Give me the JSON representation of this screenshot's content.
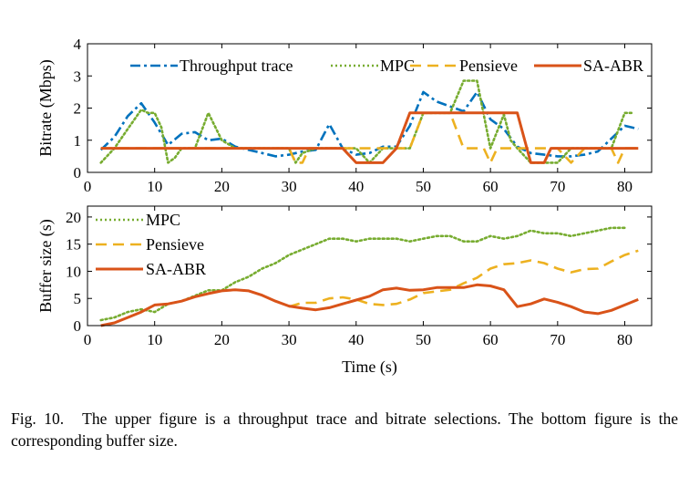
{
  "chart_data": [
    {
      "type": "line",
      "ylabel": "Bitrate (Mbps)",
      "xlim": [
        0,
        84
      ],
      "ylim": [
        0,
        4
      ],
      "xticks": [
        0,
        10,
        20,
        30,
        40,
        50,
        60,
        70,
        80
      ],
      "yticks": [
        0,
        1,
        2,
        3,
        4
      ],
      "grid": false,
      "legend_position": "top, horizontal",
      "series": [
        {
          "name": "Throughput trace",
          "style": "dashdot",
          "color": "#0072BD",
          "x": [
            2,
            4,
            6,
            8,
            10,
            12,
            14,
            16,
            18,
            20,
            22,
            24,
            26,
            28,
            30,
            32,
            34,
            36,
            38,
            40,
            42,
            44,
            46,
            48,
            50,
            52,
            54,
            56,
            58,
            60,
            62,
            64,
            66,
            68,
            70,
            72,
            74,
            76,
            78,
            80,
            82
          ],
          "y": [
            0.7,
            1.1,
            1.75,
            2.15,
            1.55,
            0.85,
            1.2,
            1.25,
            1.0,
            1.05,
            0.8,
            0.7,
            0.6,
            0.5,
            0.55,
            0.65,
            0.7,
            1.5,
            0.75,
            0.55,
            0.6,
            0.8,
            0.8,
            1.45,
            2.5,
            2.2,
            2.05,
            1.9,
            2.5,
            1.65,
            1.35,
            0.8,
            0.6,
            0.55,
            0.5,
            0.5,
            0.55,
            0.65,
            1.05,
            1.45,
            1.35
          ]
        },
        {
          "name": "MPC",
          "style": "dotted",
          "color": "#77AC30",
          "x": [
            2,
            4,
            6,
            8,
            9,
            10,
            11,
            12,
            13,
            14,
            16,
            18,
            20,
            22,
            24,
            28,
            30,
            31,
            32,
            34,
            36,
            40,
            42,
            44,
            46,
            48,
            50,
            52,
            54,
            56,
            57,
            58,
            60,
            62,
            63,
            64,
            66,
            68,
            70,
            72,
            74,
            76,
            78,
            80,
            81
          ],
          "y": [
            0.3,
            0.75,
            1.35,
            1.95,
            1.85,
            1.85,
            1.4,
            0.3,
            0.45,
            0.75,
            0.75,
            1.85,
            1.0,
            0.75,
            0.75,
            0.75,
            0.75,
            0.3,
            0.6,
            0.75,
            0.75,
            0.75,
            0.3,
            0.75,
            0.75,
            0.75,
            1.85,
            1.85,
            1.85,
            2.85,
            2.85,
            2.85,
            0.75,
            1.8,
            1.0,
            0.75,
            0.3,
            0.3,
            0.3,
            0.75,
            0.75,
            0.75,
            0.75,
            1.85,
            1.85
          ]
        },
        {
          "name": "Pensieve",
          "style": "dashed",
          "color": "#EDB120",
          "x": [
            2,
            30,
            31,
            32,
            33,
            36,
            46,
            48,
            50,
            51,
            52,
            54,
            56,
            58,
            59,
            60,
            61,
            62,
            63,
            64,
            66,
            68,
            70,
            72,
            74,
            76,
            78,
            79,
            80,
            82
          ],
          "y": [
            0.75,
            0.75,
            0.3,
            0.3,
            0.75,
            0.75,
            0.75,
            0.75,
            1.85,
            1.85,
            1.85,
            1.85,
            0.75,
            0.75,
            0.75,
            0.3,
            0.75,
            0.75,
            0.75,
            0.75,
            0.75,
            0.75,
            0.75,
            0.3,
            0.75,
            0.75,
            0.75,
            0.3,
            0.75,
            0.75
          ]
        },
        {
          "name": "SA-ABR",
          "style": "solid",
          "color": "#D95319",
          "x": [
            2,
            38,
            40,
            44,
            46,
            48,
            64,
            66,
            68,
            69,
            70,
            82
          ],
          "y": [
            0.75,
            0.75,
            0.3,
            0.3,
            0.75,
            1.85,
            1.85,
            0.3,
            0.3,
            0.75,
            0.75,
            0.75
          ]
        }
      ]
    },
    {
      "type": "line",
      "xlabel": "Time (s)",
      "ylabel": "Buffer size (s)",
      "xlim": [
        0,
        84
      ],
      "ylim": [
        0,
        22
      ],
      "xticks": [
        0,
        10,
        20,
        30,
        40,
        50,
        60,
        70,
        80
      ],
      "yticks": [
        0,
        5,
        10,
        15,
        20
      ],
      "grid": false,
      "legend_position": "top-left, vertical",
      "series": [
        {
          "name": "MPC",
          "style": "dotted",
          "color": "#77AC30",
          "x": [
            2,
            4,
            6,
            8,
            10,
            12,
            14,
            16,
            18,
            20,
            22,
            24,
            26,
            28,
            30,
            32,
            34,
            36,
            38,
            40,
            42,
            44,
            46,
            48,
            50,
            52,
            54,
            56,
            58,
            60,
            62,
            64,
            66,
            68,
            70,
            72,
            74,
            76,
            78,
            80
          ],
          "y": [
            1.0,
            1.5,
            2.5,
            3.0,
            2.5,
            4.0,
            4.5,
            5.5,
            6.5,
            6.5,
            8.0,
            9.0,
            10.5,
            11.5,
            13.0,
            14.0,
            15.0,
            16.0,
            16.0,
            15.5,
            16.0,
            16.0,
            16.0,
            15.5,
            16.0,
            16.5,
            16.5,
            15.5,
            15.5,
            16.5,
            16.0,
            16.5,
            17.5,
            17.0,
            17.0,
            16.5,
            17.0,
            17.5,
            18.0,
            18.0
          ]
        },
        {
          "name": "Pensieve",
          "style": "dashed",
          "color": "#EDB120",
          "x": [
            30,
            32,
            34,
            36,
            38,
            40,
            42,
            44,
            46,
            48,
            50,
            52,
            54,
            56,
            58,
            60,
            62,
            64,
            66,
            68,
            70,
            72,
            74,
            76,
            78,
            80,
            82
          ],
          "y": [
            3.5,
            4.2,
            4.2,
            5.0,
            5.2,
            4.8,
            4.0,
            3.8,
            4.0,
            4.8,
            6.0,
            6.3,
            6.6,
            7.8,
            8.8,
            10.5,
            11.3,
            11.5,
            12.0,
            11.5,
            10.5,
            9.8,
            10.4,
            10.5,
            11.8,
            13.0,
            13.8
          ]
        },
        {
          "name": "SA-ABR",
          "style": "solid",
          "color": "#D95319",
          "x": [
            2,
            4,
            6,
            8,
            10,
            12,
            14,
            16,
            18,
            20,
            22,
            24,
            26,
            28,
            30,
            32,
            34,
            36,
            38,
            40,
            42,
            44,
            46,
            48,
            50,
            52,
            54,
            56,
            58,
            60,
            62,
            64,
            66,
            68,
            70,
            72,
            74,
            76,
            78,
            80,
            82
          ],
          "y": [
            0.0,
            0.5,
            1.5,
            2.5,
            3.8,
            4.0,
            4.5,
            5.3,
            5.9,
            6.4,
            6.6,
            6.4,
            5.6,
            4.5,
            3.6,
            3.2,
            2.9,
            3.3,
            4.0,
            4.7,
            5.4,
            6.6,
            6.9,
            6.5,
            6.6,
            7.0,
            7.0,
            7.0,
            7.5,
            7.3,
            6.6,
            3.5,
            4.0,
            4.9,
            4.3,
            3.5,
            2.5,
            2.2,
            2.8,
            3.8,
            4.8
          ]
        }
      ]
    }
  ],
  "caption": {
    "number": "Fig. 10.",
    "text": "The upper figure is a throughput trace and bitrate selections. The bottom figure is the corresponding buffer size."
  }
}
